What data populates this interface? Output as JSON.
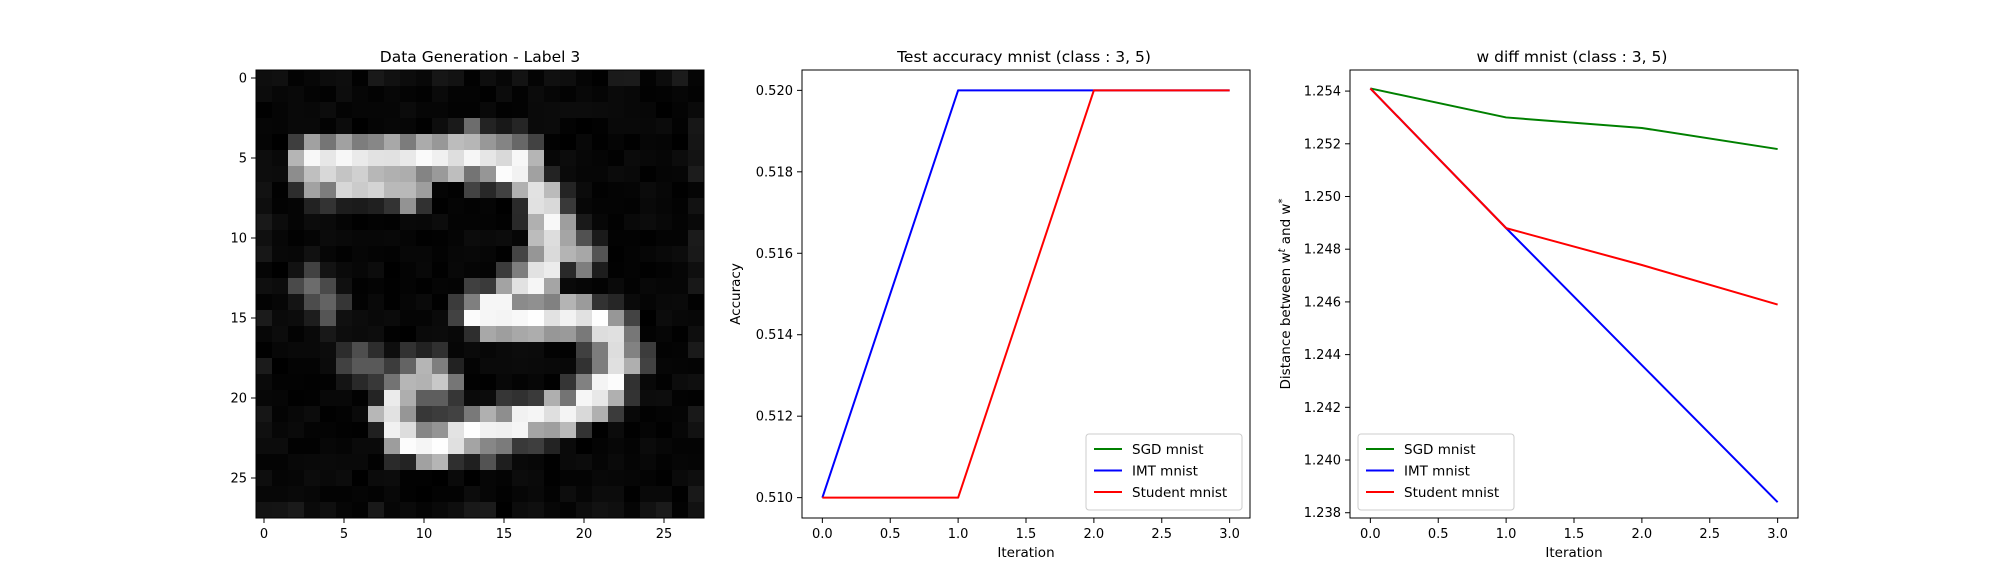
{
  "chart_data": [
    {
      "type": "heatmap",
      "title": "Data Generation - Label 3",
      "colormap": "gray",
      "xticks": [
        0,
        5,
        10,
        15,
        20,
        25
      ],
      "yticks": [
        0,
        5,
        10,
        15,
        20,
        25
      ],
      "xlim": [
        -0.5,
        27.5
      ],
      "ylim": [
        27.5,
        -0.5
      ],
      "background_level": 0.05,
      "strokes": [
        {
          "points": [
            [
              3,
              5.2
            ],
            [
              5,
              5
            ],
            [
              8,
              5.2
            ],
            [
              11,
              5
            ],
            [
              14,
              5.2
            ],
            [
              16,
              5.6
            ]
          ],
          "level": 1.0
        },
        {
          "points": [
            [
              3,
              6.2
            ],
            [
              6,
              6.6
            ],
            [
              9,
              6.8
            ]
          ],
          "level": 0.85
        },
        {
          "points": [
            [
              13,
              4.2
            ],
            [
              15.5,
              4.5
            ]
          ],
          "level": 0.6
        },
        {
          "points": [
            [
              16,
              5.6
            ],
            [
              17.5,
              8
            ],
            [
              18.5,
              10.5
            ],
            [
              17,
              12.5
            ],
            [
              15,
              14
            ],
            [
              13.5,
              14.8
            ]
          ],
          "level": 1.0
        },
        {
          "points": [
            [
              18.5,
              10.5
            ],
            [
              20,
              10.8
            ]
          ],
          "level": 0.7
        },
        {
          "points": [
            [
              13.5,
              14.8
            ],
            [
              17,
              14.8
            ],
            [
              20,
              15
            ],
            [
              22,
              16
            ],
            [
              22.3,
              17.5
            ],
            [
              21.5,
              19
            ],
            [
              20.5,
              20
            ],
            [
              19,
              21
            ],
            [
              16,
              21.5
            ],
            [
              13,
              22.2
            ],
            [
              10,
              23
            ],
            [
              9,
              22.5
            ],
            [
              8,
              21
            ],
            [
              8.5,
              19.5
            ]
          ],
          "level": 1.0
        },
        {
          "points": [
            [
              8.5,
              19.5
            ],
            [
              10,
              18.5
            ],
            [
              11,
              18.8
            ]
          ],
          "level": 0.8
        },
        {
          "points": [
            [
              3,
              12.8
            ],
            [
              4,
              14.2
            ]
          ],
          "level": 0.45
        },
        {
          "points": [
            [
              6,
              17.5
            ],
            [
              7.5,
              18.5
            ]
          ],
          "level": 0.35
        },
        {
          "points": [
            [
              10,
              22.5
            ],
            [
              14,
              22.8
            ]
          ],
          "level": 0.6
        }
      ]
    },
    {
      "type": "line",
      "title": "Test accuracy mnist (class : 3, 5)",
      "xlabel": "Iteration",
      "ylabel": "Accuracy",
      "xlim": [
        -0.15,
        3.15
      ],
      "ylim": [
        0.5095,
        0.5205
      ],
      "xticks": [
        "0.0",
        "0.5",
        "1.0",
        "1.5",
        "2.0",
        "2.5",
        "3.0"
      ],
      "yticks": [
        "0.510",
        "0.512",
        "0.514",
        "0.516",
        "0.518",
        "0.520"
      ],
      "legend_position": "lower-right",
      "x": [
        0,
        1,
        2,
        3
      ],
      "series": [
        {
          "name": "SGD mnist",
          "color": "#008000",
          "values": [
            0.51,
            0.51,
            0.52,
            0.52
          ],
          "draw": false
        },
        {
          "name": "IMT mnist",
          "color": "#0000ff",
          "values": [
            0.51,
            0.52,
            0.52,
            0.52
          ],
          "draw": true
        },
        {
          "name": "Student mnist",
          "color": "#ff0000",
          "values": [
            0.51,
            0.51,
            0.52,
            0.52
          ],
          "draw": true
        }
      ]
    },
    {
      "type": "line",
      "title": "w diff mnist (class : 3, 5)",
      "xlabel": "Iteration",
      "ylabel": "Distance between w",
      "ylabel_sup1": "t",
      "ylabel_mid": " and w",
      "ylabel_sup2": "*",
      "xlim": [
        -0.15,
        3.15
      ],
      "ylim": [
        1.2378,
        1.2548
      ],
      "xticks": [
        "0.0",
        "0.5",
        "1.0",
        "1.5",
        "2.0",
        "2.5",
        "3.0"
      ],
      "yticks": [
        "1.238",
        "1.240",
        "1.242",
        "1.244",
        "1.246",
        "1.248",
        "1.250",
        "1.252",
        "1.254"
      ],
      "legend_position": "lower-left",
      "x": [
        0,
        1,
        2,
        3
      ],
      "series": [
        {
          "name": "SGD mnist",
          "color": "#008000",
          "values": [
            1.2541,
            1.253,
            1.2526,
            1.2518
          ],
          "draw": true
        },
        {
          "name": "IMT mnist",
          "color": "#0000ff",
          "values": [
            1.2541,
            1.2488,
            1.2436,
            1.2384
          ],
          "draw": true
        },
        {
          "name": "Student mnist",
          "color": "#ff0000",
          "values": [
            1.2541,
            1.2488,
            1.2474,
            1.2459
          ],
          "draw": true
        }
      ]
    }
  ]
}
